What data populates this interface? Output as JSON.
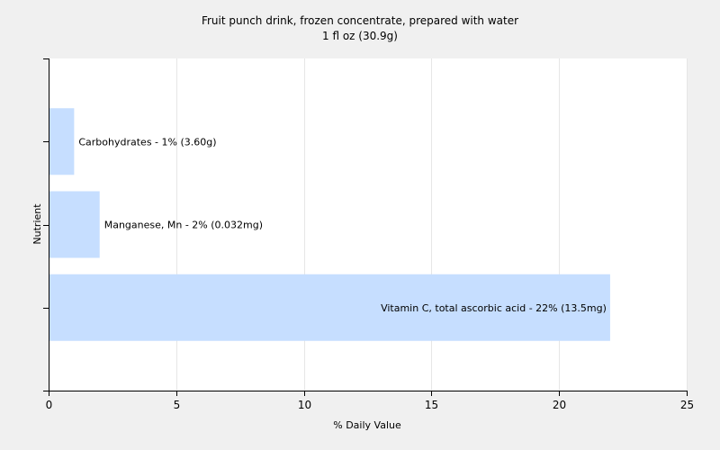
{
  "chart_data": {
    "type": "bar",
    "orientation": "horizontal",
    "title": "Fruit punch drink, frozen concentrate, prepared with water",
    "subtitle": "1 fl oz (30.9g)",
    "xlabel": "% Daily Value",
    "ylabel": "Nutrient",
    "xlim": [
      0,
      25
    ],
    "xticks": [
      0,
      5,
      10,
      15,
      20,
      25
    ],
    "grid": true,
    "legend": "none",
    "bar_color": "#c6deff",
    "categories": [
      "Carbohydrates",
      "Manganese, Mn",
      "Vitamin C, total ascorbic acid"
    ],
    "values": [
      1,
      2,
      22
    ],
    "labels": [
      "Carbohydrates - 1% (3.60g)",
      "Manganese, Mn - 2% (0.032mg)",
      "Vitamin C, total ascorbic acid - 22% (13.5mg)"
    ]
  }
}
